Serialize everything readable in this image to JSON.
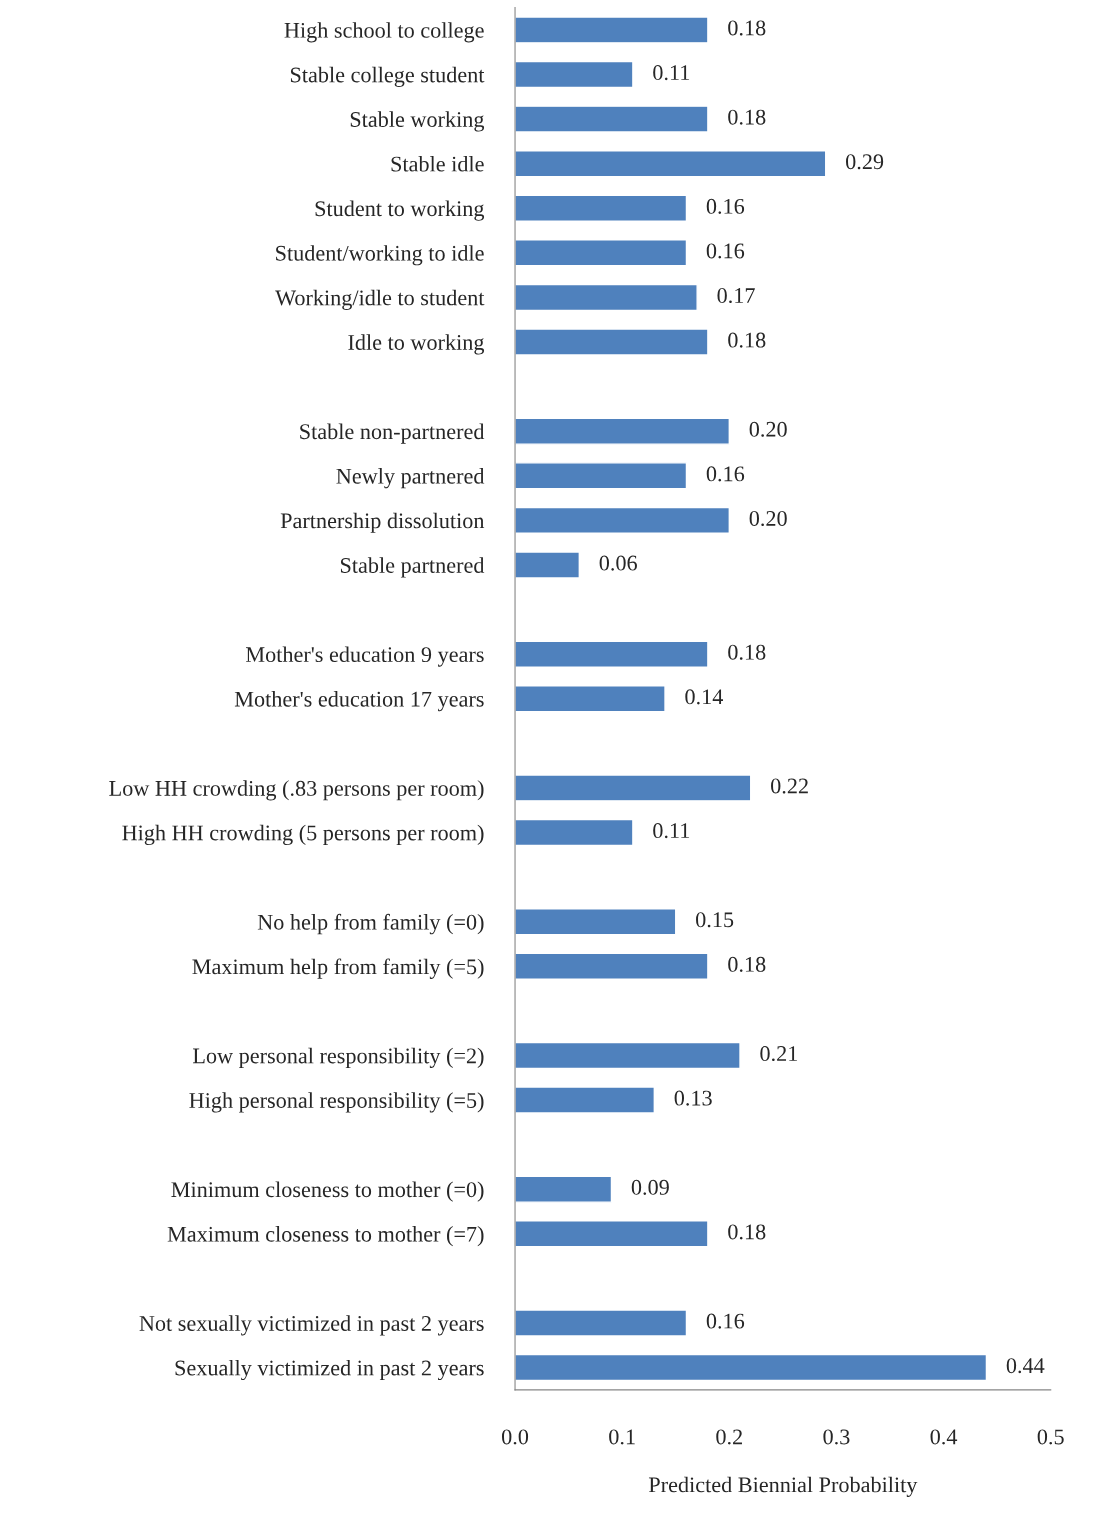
{
  "chart_data": {
    "type": "bar",
    "orientation": "horizontal",
    "xlabel": "Predicted Biennial Probability",
    "categories": [
      "High school to college",
      "Stable college student",
      "Stable working",
      "Stable idle",
      "Student to working",
      "Student/working to idle",
      "Working/idle to student",
      "Idle to working",
      null,
      "Stable non-partnered",
      "Newly partnered",
      "Partnership dissolution",
      "Stable partnered",
      null,
      "Mother's education 9 years",
      "Mother's education 17 years",
      null,
      "Low HH crowding (.83 persons per room)",
      "High HH crowding (5 persons per room)",
      null,
      "No help from family (=0)",
      "Maximum help from family (=5)",
      null,
      "Low personal responsibility (=2)",
      "High personal responsibility (=5)",
      null,
      "Minimum closeness to mother (=0)",
      "Maximum closeness to mother (=7)",
      null,
      "Not sexually victimized in past 2 years",
      "Sexually victimized in past 2 years"
    ],
    "values": [
      0.18,
      0.11,
      0.18,
      0.29,
      0.16,
      0.16,
      0.17,
      0.18,
      null,
      0.2,
      0.16,
      0.2,
      0.06,
      null,
      0.18,
      0.14,
      null,
      0.22,
      0.11,
      null,
      0.15,
      0.18,
      null,
      0.21,
      0.13,
      null,
      0.09,
      0.18,
      null,
      0.16,
      0.44
    ],
    "value_labels": [
      "0.18",
      "0.11",
      "0.18",
      "0.29",
      "0.16",
      "0.16",
      "0.17",
      "0.18",
      null,
      "0.20",
      "0.16",
      "0.20",
      "0.06",
      null,
      "0.18",
      "0.14",
      null,
      "0.22",
      "0.11",
      null,
      "0.15",
      "0.18",
      null,
      "0.21",
      "0.13",
      null,
      "0.09",
      "0.18",
      null,
      "0.16",
      "0.44"
    ],
    "color": "#4f81bd",
    "xlim": [
      0,
      0.5
    ],
    "xticks": [
      {
        "value": 0,
        "label": "0.0"
      },
      0.1,
      0.2,
      0.3,
      0.4,
      0.5
    ],
    "grid": false,
    "legend": false
  }
}
